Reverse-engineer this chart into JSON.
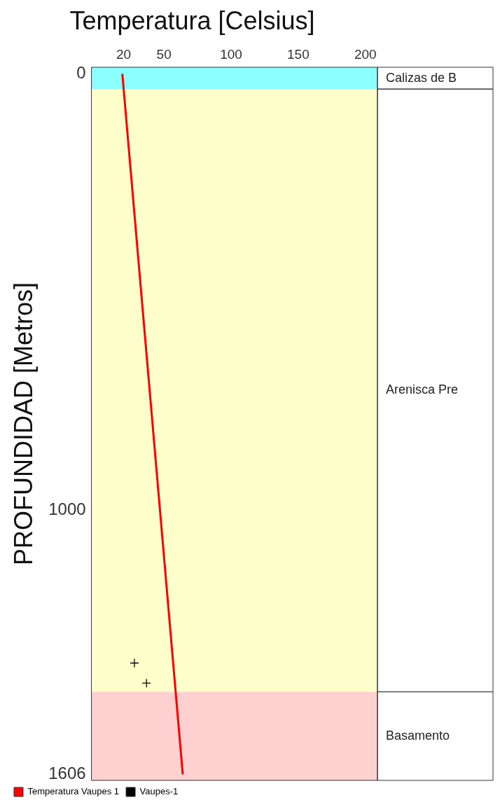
{
  "chart_data": {
    "type": "line",
    "title": "Temperatura [Celsius]",
    "ylabel": "PROFUNDIDAD [Metros]",
    "xlim": [
      -4,
      209
    ],
    "xticks": [
      20,
      50,
      100,
      150,
      200
    ],
    "ylim": [
      1620,
      -15
    ],
    "yticks": [
      0,
      1000,
      1606
    ],
    "grid": false,
    "legend": "bottom left",
    "series": [
      {
        "name": "Temperatura Vaupes 1",
        "color": "#ff0000",
        "type": "line",
        "x": [
          19,
          64
        ],
        "values": [
          0,
          1606
        ]
      },
      {
        "name": "Vaupes-1",
        "color": "#000000",
        "type": "scatter",
        "marker": "cross",
        "x": [
          28,
          37
        ],
        "values": [
          1351,
          1397
        ]
      }
    ],
    "bands": [
      {
        "axis": "y",
        "from": -15,
        "to": 35,
        "label": "Calizas de B",
        "color": "#8cffff"
      },
      {
        "axis": "y",
        "from": 35,
        "to": 1417,
        "label": "Arenisca Pre",
        "color": "#ffffcc"
      },
      {
        "axis": "y",
        "from": 1417,
        "to": 1620,
        "label": "Basamento",
        "color": "#ffd0d0"
      }
    ]
  }
}
